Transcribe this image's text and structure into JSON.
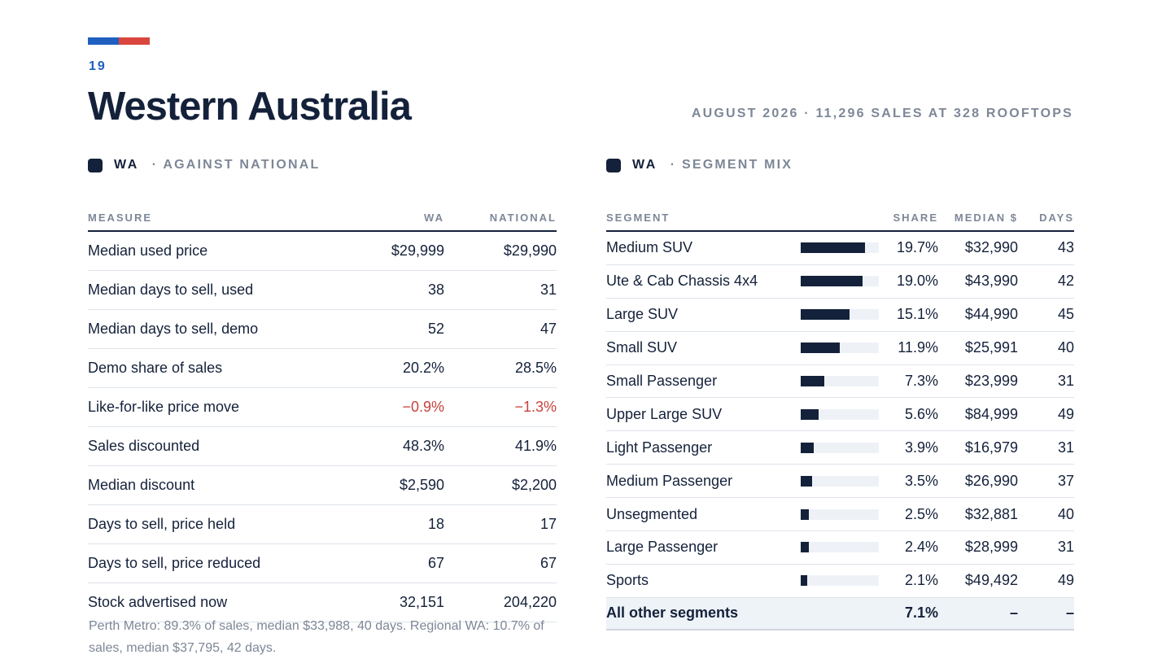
{
  "header": {
    "page_number": "19",
    "title": "Western Australia",
    "subtitle": "AUGUST 2026 · 11,296 SALES AT 328 ROOFTOPS",
    "accent_colors": [
      "#1f5fbf",
      "#d9463e"
    ]
  },
  "comparison": {
    "region": "WA",
    "subtitle": "· AGAINST NATIONAL",
    "columns": {
      "measure": "MEASURE",
      "wa": "WA",
      "national": "NATIONAL"
    },
    "rows": [
      {
        "measure": "Median used price",
        "wa": "$29,999",
        "national": "$29,990"
      },
      {
        "measure": "Median days to sell, used",
        "wa": "38",
        "national": "31"
      },
      {
        "measure": "Median days to sell, demo",
        "wa": "52",
        "national": "47"
      },
      {
        "measure": "Demo share of sales",
        "wa": "20.2%",
        "national": "28.5%"
      },
      {
        "measure": "Like-for-like price move",
        "wa": "−0.9%",
        "national": "−1.3%"
      },
      {
        "measure": "Sales discounted",
        "wa": "48.3%",
        "national": "41.9%"
      },
      {
        "measure": "Median discount",
        "wa": "$2,590",
        "national": "$2,200"
      },
      {
        "measure": "Days to sell, price held",
        "wa": "18",
        "national": "17"
      },
      {
        "measure": "Days to sell, price reduced",
        "wa": "67",
        "national": "67"
      },
      {
        "measure": "Stock advertised now",
        "wa": "32,151",
        "national": "204,220"
      }
    ],
    "negative_color": "#c8413b"
  },
  "segments": {
    "region": "WA",
    "subtitle": "· SEGMENT MIX",
    "columns": {
      "segment": "SEGMENT",
      "share": "SHARE",
      "median": "MEDIAN $",
      "days": "DAYS"
    },
    "rows": [
      {
        "segment": "Medium SUV",
        "share": "19.7%",
        "share_value": 19.7,
        "median": "$32,990",
        "days": "43"
      },
      {
        "segment": "Ute & Cab Chassis 4x4",
        "share": "19.0%",
        "share_value": 19.0,
        "median": "$43,990",
        "days": "42"
      },
      {
        "segment": "Large SUV",
        "share": "15.1%",
        "share_value": 15.1,
        "median": "$44,990",
        "days": "45"
      },
      {
        "segment": "Small SUV",
        "share": "11.9%",
        "share_value": 11.9,
        "median": "$25,991",
        "days": "40"
      },
      {
        "segment": "Small Passenger",
        "share": "7.3%",
        "share_value": 7.3,
        "median": "$23,999",
        "days": "31"
      },
      {
        "segment": "Upper Large SUV",
        "share": "5.6%",
        "share_value": 5.6,
        "median": "$84,999",
        "days": "49"
      },
      {
        "segment": "Light Passenger",
        "share": "3.9%",
        "share_value": 3.9,
        "median": "$16,979",
        "days": "31"
      },
      {
        "segment": "Medium Passenger",
        "share": "3.5%",
        "share_value": 3.5,
        "median": "$26,990",
        "days": "37"
      },
      {
        "segment": "Unsegmented",
        "share": "2.5%",
        "share_value": 2.5,
        "median": "$32,881",
        "days": "40"
      },
      {
        "segment": "Large Passenger",
        "share": "2.4%",
        "share_value": 2.4,
        "median": "$28,999",
        "days": "31"
      },
      {
        "segment": "Sports",
        "share": "2.1%",
        "share_value": 2.1,
        "median": "$49,492",
        "days": "49"
      }
    ],
    "total": {
      "segment": "All other segments",
      "share": "7.1%",
      "median": "–",
      "days": "–"
    },
    "bar_color": "#14213a"
  },
  "footnote": "Perth Metro: 89.3% of sales, median $33,988, 40 days. Regional WA: 10.7% of sales, median $37,795, 42 days."
}
